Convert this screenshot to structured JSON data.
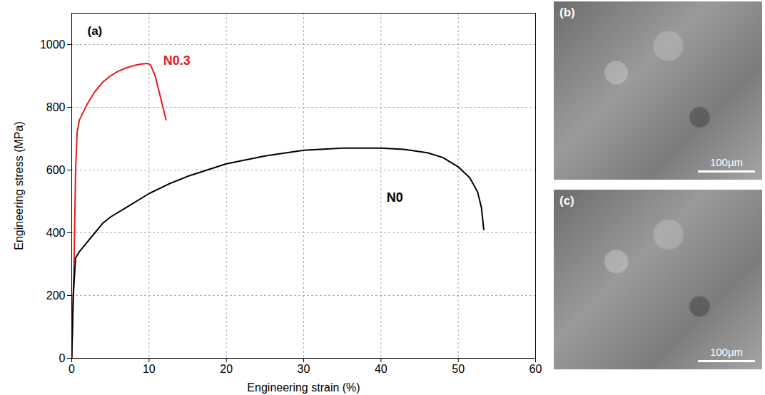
{
  "chart_data": {
    "type": "line",
    "annotation": "(a)",
    "x_label": "Engineering strain (%)",
    "y_label": "Engineering stress (MPa)",
    "xlim": [
      0,
      60
    ],
    "ylim": [
      0,
      1100
    ],
    "xticks": [
      0,
      10,
      20,
      30,
      40,
      50,
      60
    ],
    "yticks": [
      0,
      200,
      400,
      600,
      800,
      1000
    ],
    "grid": true,
    "series": [
      {
        "name": "N0.3",
        "color": "#e8191c",
        "x": [
          0,
          0.3,
          0.5,
          0.7,
          1,
          2,
          3,
          4,
          5,
          6,
          7,
          8,
          9,
          9.8,
          10.2,
          10.8,
          11.3,
          11.8,
          12.2
        ],
        "values": [
          0,
          300,
          600,
          720,
          760,
          810,
          850,
          880,
          900,
          915,
          925,
          933,
          938,
          940,
          935,
          900,
          850,
          800,
          760
        ]
      },
      {
        "name": "N0",
        "color": "#000000",
        "x": [
          0,
          0.2,
          0.5,
          1,
          2,
          3,
          4,
          5,
          7,
          10,
          12.5,
          15,
          20,
          25,
          30,
          35,
          40,
          43,
          46,
          48,
          50,
          51.5,
          52.5,
          53,
          53.3
        ],
        "values": [
          0,
          200,
          320,
          340,
          370,
          400,
          430,
          450,
          480,
          525,
          555,
          580,
          620,
          645,
          663,
          670,
          670,
          666,
          655,
          640,
          610,
          575,
          530,
          480,
          410
        ]
      }
    ]
  },
  "panels": [
    {
      "label": "(b)",
      "scale_bar": "100µm"
    },
    {
      "label": "(c)",
      "scale_bar": "100µm"
    }
  ]
}
